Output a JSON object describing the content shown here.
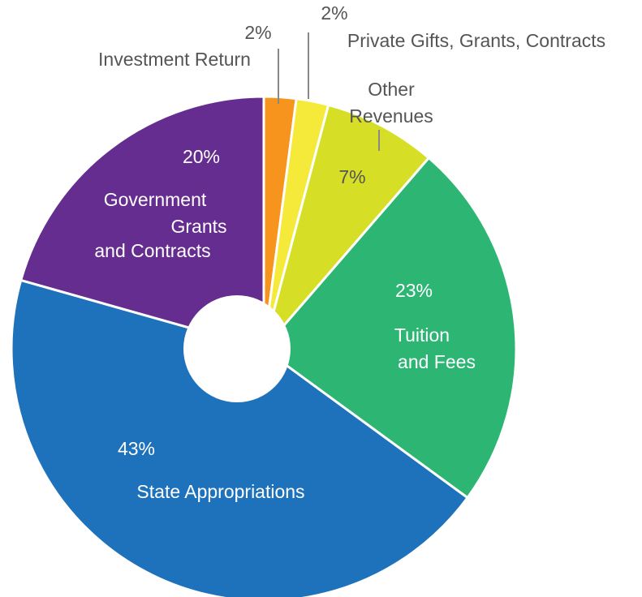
{
  "chart_data": {
    "type": "donut",
    "categories": [
      [
        "Investment Return"
      ],
      [
        "Private Gifts, Grants, Contracts"
      ],
      [
        "Other",
        "Revenues"
      ],
      [
        "Tuition",
        "and Fees"
      ],
      [
        "State Appropriations"
      ],
      [
        "Government",
        "Grants",
        "and Contracts"
      ]
    ],
    "values": [
      2,
      2,
      7,
      23,
      43,
      20
    ],
    "value_labels": [
      "2%",
      "2%",
      "7%",
      "23%",
      "43%",
      "20%"
    ],
    "colors": [
      "#f7941d",
      "#f5e93a",
      "#d6df26",
      "#2db673",
      "#1e72bc",
      "#652d90"
    ]
  }
}
